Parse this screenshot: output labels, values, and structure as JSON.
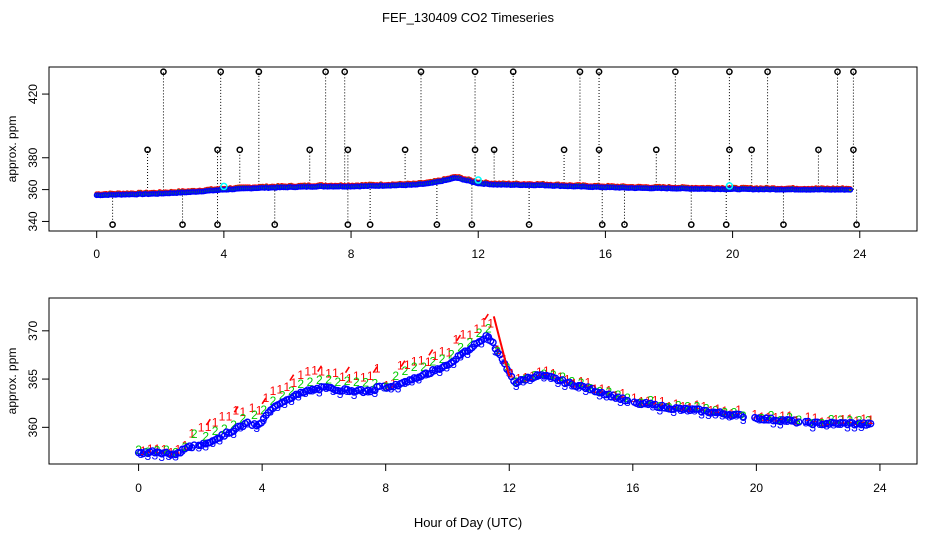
{
  "title": "FEF_130409  CO2 Timeseries",
  "xlabel": "Hour of Day (UTC)",
  "colors": {
    "black": "#000000",
    "red": "#ff0000",
    "green": "#00cd00",
    "blue": "#0000ff",
    "cyan": "#00ffff"
  },
  "chart_data": [
    {
      "type": "scatter",
      "panel": "top",
      "ylabel": "approx. ppm",
      "xlim": [
        -1.5,
        25.8
      ],
      "ylim": [
        334,
        437
      ],
      "xticks": [
        "0",
        "4",
        "8",
        "12",
        "16",
        "20",
        "24"
      ],
      "yticks": [
        "340",
        "360",
        "380",
        "420"
      ],
      "ytick_values": [
        340,
        360,
        380,
        420
      ],
      "outliers_high_hours": [
        2.1,
        3.9,
        5.1,
        7.2,
        7.8,
        10.2,
        11.9,
        13.1,
        15.2,
        15.8,
        18.2,
        19.9,
        21.1,
        23.3,
        23.8
      ],
      "outliers_mid_hours": [
        1.6,
        3.8,
        4.5,
        6.7,
        7.9,
        9.7,
        11.9,
        12.5,
        14.7,
        15.8,
        17.6,
        19.9,
        20.6,
        22.7,
        23.8
      ],
      "outlier_mid_value": 385,
      "outlier_high_value": 434,
      "outliers_low_hours": [
        0.5,
        2.7,
        3.8,
        5.6,
        7.9,
        8.6,
        10.7,
        11.8,
        13.6,
        15.9,
        16.6,
        18.7,
        19.8,
        21.6,
        23.9
      ],
      "outlier_low_value": 338,
      "baseline_profile": {
        "hours": [
          0,
          0.5,
          1,
          1.5,
          2,
          3,
          4,
          5,
          6,
          7,
          8,
          9,
          10,
          10.5,
          11,
          11.3,
          11.6,
          12,
          12.5,
          13,
          14,
          15,
          16,
          17,
          18,
          19,
          20,
          21,
          22,
          23,
          23.7
        ],
        "values": [
          356.5,
          356.8,
          357,
          357.2,
          357.5,
          358.5,
          360,
          361,
          361.5,
          362,
          362,
          362.5,
          363,
          364,
          366,
          367.5,
          366,
          364,
          363.2,
          363,
          362.8,
          362,
          361.5,
          361,
          360.8,
          360.5,
          360.3,
          360.2,
          360.1,
          360,
          360
        ]
      }
    },
    {
      "type": "scatter",
      "panel": "bottom",
      "ylabel": "approx. ppm",
      "xlim": [
        -2.9,
        25.2
      ],
      "ylim": [
        356.2,
        373.4
      ],
      "xticks": [
        "0",
        "4",
        "8",
        "12",
        "16",
        "20",
        "24"
      ],
      "yticks": [
        "360",
        "365",
        "370"
      ],
      "ytick_values": [
        360,
        365,
        370
      ],
      "series": [
        {
          "name": "1",
          "color": "#ff0000",
          "marker": "1"
        },
        {
          "name": "2",
          "color": "#00cd00",
          "marker": "2"
        },
        {
          "name": "3",
          "color": "#0000ff",
          "marker": "3"
        },
        {
          "name": "o",
          "color": "#0000ff",
          "marker": "o"
        }
      ],
      "profile": {
        "hours": [
          0,
          0.5,
          1,
          1.2,
          1.5,
          2,
          2.5,
          3,
          3.5,
          3.9,
          4.2,
          4.6,
          5,
          5.5,
          6,
          6.5,
          7,
          7.5,
          7.8,
          8.2,
          8.6,
          9,
          9.5,
          10,
          10.5,
          11,
          11.3,
          11.6,
          11.9,
          12.2,
          12.6,
          13,
          13.4,
          14,
          14.5,
          15,
          15.5,
          16,
          16.5,
          17,
          17.5,
          18,
          18.5,
          19,
          19.5,
          20,
          20.5,
          21,
          21.5,
          22,
          22.5,
          23,
          23.7
        ],
        "values": [
          357.3,
          357.5,
          357.3,
          357.2,
          357.8,
          358.2,
          358.8,
          359.6,
          360.4,
          360.2,
          361.5,
          362.6,
          363.2,
          363.8,
          364.1,
          363.9,
          363.8,
          363.7,
          364.2,
          364.2,
          364.6,
          365.1,
          365.8,
          366.5,
          367.6,
          368.8,
          369.6,
          368,
          366.2,
          364.6,
          365.1,
          365.4,
          365.1,
          364.5,
          364.1,
          363.6,
          363.1,
          362.5,
          362.4,
          362.1,
          361.9,
          361.8,
          361.6,
          361.4,
          361.2,
          361,
          360.8,
          360.7,
          360.5,
          360.4,
          360.4,
          360.4,
          360.3
        ]
      },
      "gaps": [
        [
          1.85,
          1.9
        ],
        [
          3.6,
          3.65
        ],
        [
          7.85,
          7.95
        ],
        [
          12.0,
          12.05
        ],
        [
          15.85,
          16.0
        ],
        [
          19.6,
          19.9
        ],
        [
          21.4,
          21.55
        ]
      ]
    }
  ]
}
